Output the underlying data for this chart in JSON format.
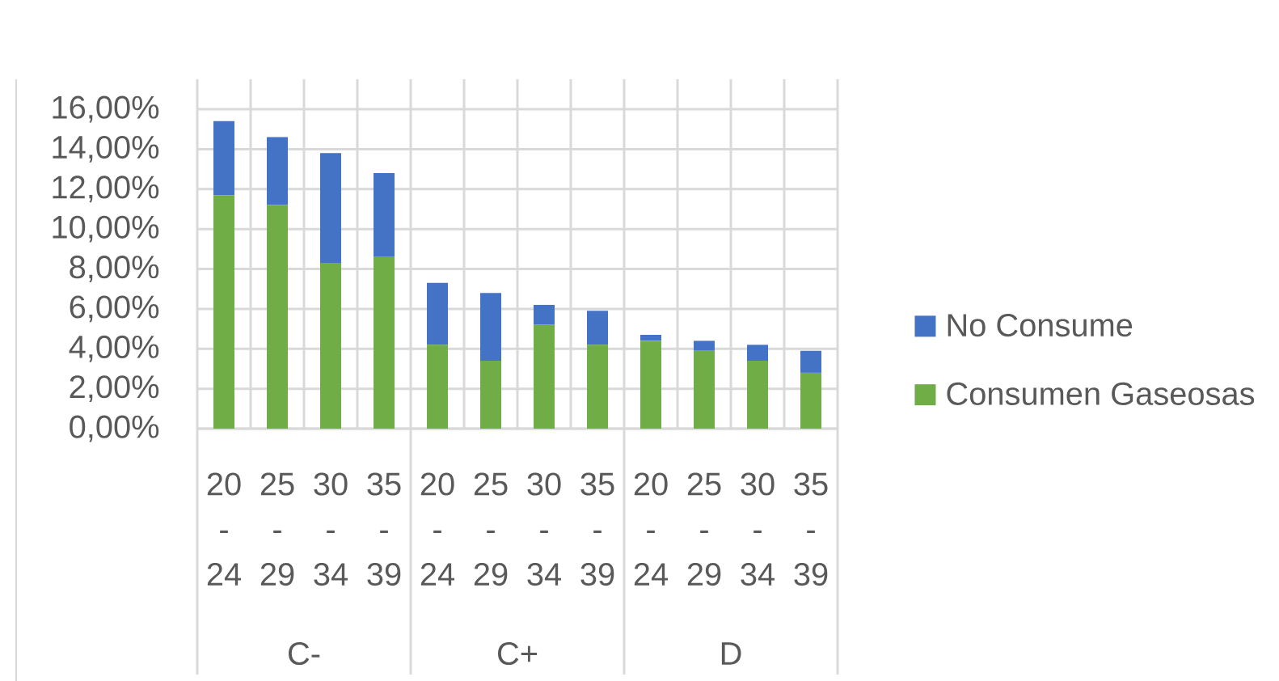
{
  "chart_data": {
    "type": "bar",
    "stacked": true,
    "categories": [
      "20 - 24",
      "25 - 29",
      "30 - 34",
      "35 - 39",
      "20 - 24",
      "25 - 29",
      "30 - 34",
      "35 - 39",
      "20 - 24",
      "25 - 29",
      "30 - 34",
      "35 - 39"
    ],
    "series": [
      {
        "name": "Consumen Gaseosas",
        "color": "#70ad47",
        "values": [
          11.7,
          11.2,
          8.3,
          8.6,
          4.2,
          3.4,
          5.2,
          4.2,
          4.4,
          3.9,
          3.4,
          2.8
        ]
      },
      {
        "name": "No Consume",
        "color": "#4472c4",
        "values": [
          3.7,
          3.4,
          5.5,
          4.2,
          3.1,
          3.4,
          1.0,
          1.7,
          0.3,
          0.5,
          0.8,
          1.1
        ]
      }
    ],
    "ylim": [
      0,
      17.5
    ],
    "yticks": [
      {
        "value": 0,
        "label": "0,00%"
      },
      {
        "value": 2,
        "label": "2,00%"
      },
      {
        "value": 4,
        "label": "4,00%"
      },
      {
        "value": 6,
        "label": "6,00%"
      },
      {
        "value": 8,
        "label": "8,00%"
      },
      {
        "value": 10,
        "label": "10,00%"
      },
      {
        "value": 12,
        "label": "12,00%"
      },
      {
        "value": 14,
        "label": "14,00%"
      },
      {
        "value": 16,
        "label": "16,00%"
      }
    ],
    "grid": true,
    "legend": "right",
    "annotations": [
      "C-",
      "C+",
      "D"
    ]
  }
}
